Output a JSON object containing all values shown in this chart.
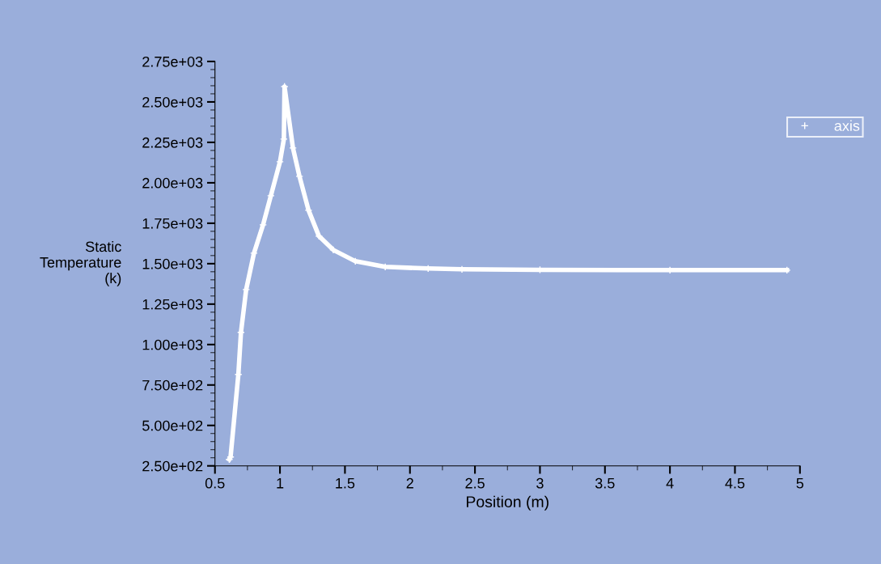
{
  "chart_data": {
    "type": "line",
    "xlabel": "Position (m)",
    "ylabel": "Static\nTemperature\n(k)",
    "xlim": [
      0.5,
      5
    ],
    "xticks": [
      0.5,
      1,
      1.5,
      2,
      2.5,
      3,
      3.5,
      4,
      4.5,
      5
    ],
    "ylim": [
      250,
      2750
    ],
    "yticks": [
      {
        "value": 250,
        "label": "2.50e+02"
      },
      {
        "value": 500,
        "label": "5.00e+02"
      },
      {
        "value": 750,
        "label": "7.50e+02"
      },
      {
        "value": 1000,
        "label": "1.00e+03"
      },
      {
        "value": 1250,
        "label": "1.25e+03"
      },
      {
        "value": 1500,
        "label": "1.50e+03"
      },
      {
        "value": 1750,
        "label": "1.75e+03"
      },
      {
        "value": 2000,
        "label": "2.00e+03"
      },
      {
        "value": 2250,
        "label": "2.25e+03"
      },
      {
        "value": 2500,
        "label": "2.50e+03"
      },
      {
        "value": 2750,
        "label": "2.75e+03"
      }
    ],
    "grid": false,
    "legend": "top right",
    "marker": "cross",
    "line_style": "solid",
    "series": [
      {
        "name": "axis",
        "color": "#ffffff",
        "x": [
          0.61,
          0.62,
          0.68,
          0.7,
          0.74,
          0.8,
          0.87,
          0.93,
          1.0,
          1.03,
          1.035,
          1.1,
          1.15,
          1.22,
          1.3,
          1.41,
          1.58,
          1.81,
          2.14,
          2.4,
          3.0,
          4.0,
          4.9
        ],
        "values": [
          290,
          305,
          815,
          1075,
          1340,
          1565,
          1740,
          1920,
          2130,
          2270,
          2595,
          2215,
          2040,
          1830,
          1670,
          1585,
          1515,
          1480,
          1470,
          1465,
          1462,
          1460,
          1460
        ]
      }
    ]
  }
}
